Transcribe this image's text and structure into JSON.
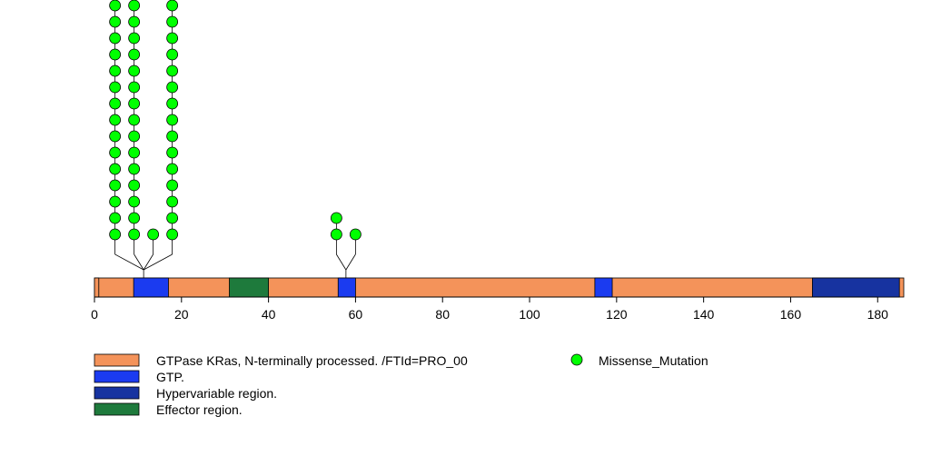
{
  "chart_data": {
    "type": "lollipop",
    "title": "",
    "xlabel": "",
    "ylabel": "",
    "xlim": [
      0,
      186
    ],
    "x_ticks": [
      0,
      20,
      40,
      60,
      80,
      100,
      120,
      140,
      160,
      180
    ],
    "protein_length": 186,
    "domains": [
      {
        "name": "GTPase KRas, N-terminally processed. /FTId=PRO_00",
        "start": 1,
        "end": 186,
        "color": "#F4935A"
      },
      {
        "name": "GTP.",
        "start": 10,
        "end": 17,
        "color": "#1B3BF0"
      },
      {
        "name": "GTP.",
        "start": 57,
        "end": 60,
        "color": "#1B3BF0"
      },
      {
        "name": "GTP.",
        "start": 116,
        "end": 119,
        "color": "#1B3BF0"
      },
      {
        "name": "Effector region.",
        "start": 32,
        "end": 40,
        "color": "#1E7A3C"
      },
      {
        "name": "Hypervariable region.",
        "start": 166,
        "end": 185,
        "color": "#1733A0"
      }
    ],
    "mutations": [
      {
        "position": 12,
        "count": 15,
        "type": "Missense_Mutation"
      },
      {
        "position": 13,
        "count": 15,
        "type": "Missense_Mutation"
      },
      {
        "position": 14,
        "count": 1,
        "type": "Missense_Mutation"
      },
      {
        "position": 15,
        "count": 15,
        "type": "Missense_Mutation"
      },
      {
        "position": 59,
        "count": 2,
        "type": "Missense_Mutation"
      },
      {
        "position": 61,
        "count": 1,
        "type": "Missense_Mutation"
      }
    ],
    "legend": {
      "domains": [
        {
          "label": "GTPase KRas, N-terminally processed. /FTId=PRO_00",
          "color": "#F4935A"
        },
        {
          "label": "GTP.",
          "color": "#1B3BF0"
        },
        {
          "label": "Hypervariable region.",
          "color": "#1733A0"
        },
        {
          "label": "Effector region.",
          "color": "#1E7A3C"
        }
      ],
      "mutation_types": [
        {
          "label": "Missense_Mutation",
          "color": "#00FF00"
        }
      ]
    }
  }
}
